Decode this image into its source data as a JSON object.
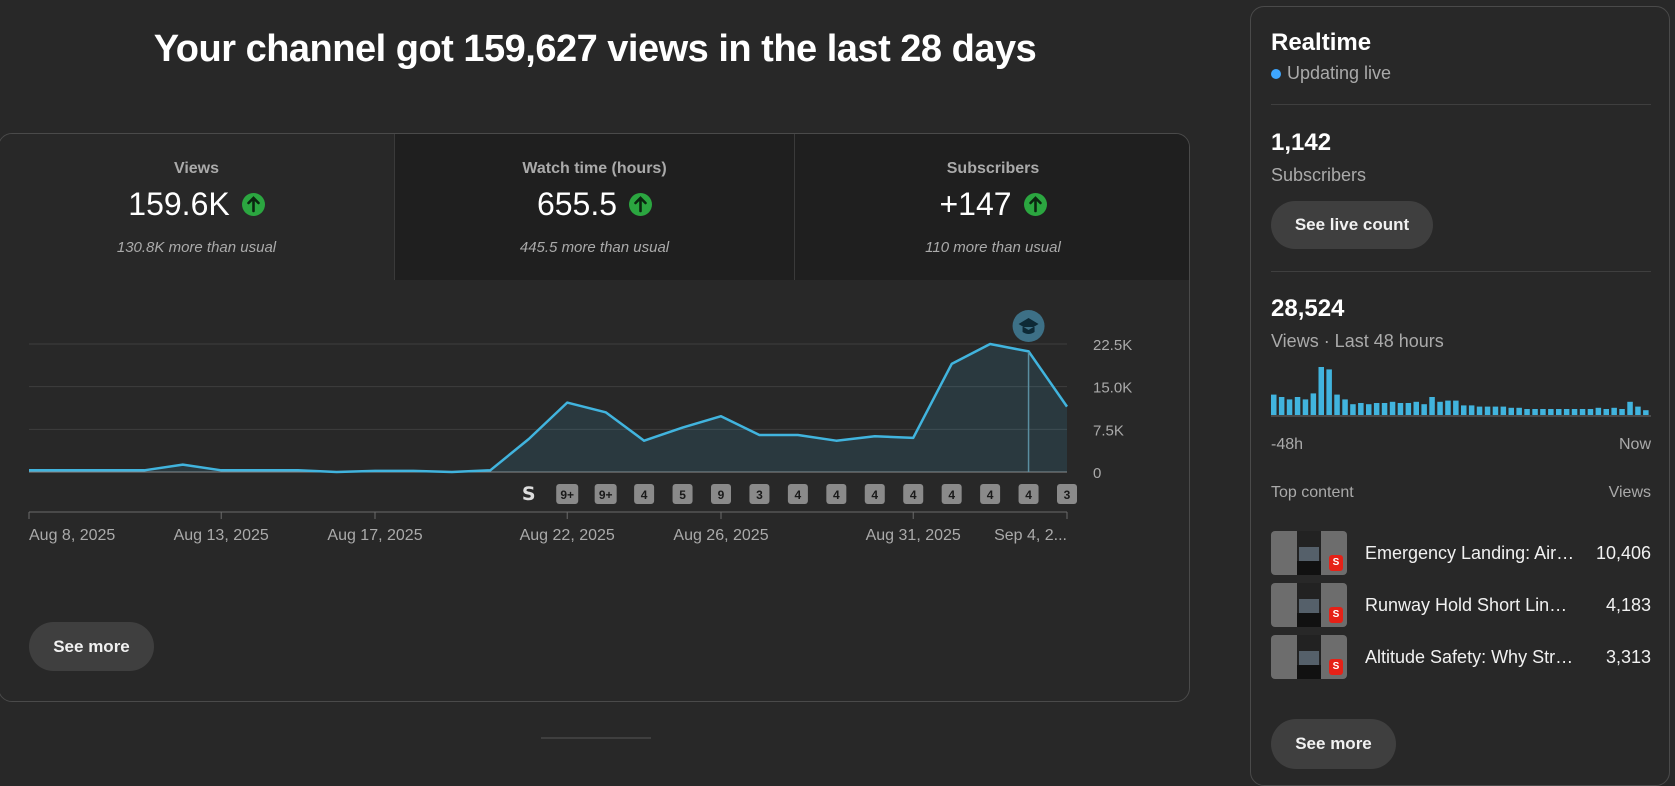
{
  "headline": "Your channel got 159,627 views in the last 28 days",
  "metrics": [
    {
      "label": "Views",
      "value": "159.6K",
      "sub": "130.8K more than usual",
      "selected": true
    },
    {
      "label": "Watch time (hours)",
      "value": "655.5",
      "sub": "445.5 more than usual",
      "selected": false
    },
    {
      "label": "Subscribers",
      "value": "+147",
      "sub": "110 more than usual",
      "selected": false
    }
  ],
  "chart_data": {
    "type": "area",
    "title": "Views",
    "ylim": [
      0,
      22500
    ],
    "y_ticks": [
      "22.5K",
      "15.0K",
      "7.5K",
      "0"
    ],
    "y_tick_values": [
      22500,
      15000,
      7500,
      0
    ],
    "x_labels": [
      "Aug 8, 2025",
      "Aug 13, 2025",
      "Aug 17, 2025",
      "Aug 22, 2025",
      "Aug 26, 2025",
      "Aug 31, 2025",
      "Sep 4, 2..."
    ],
    "x_label_index": [
      0,
      5,
      9,
      14,
      18,
      23,
      27
    ],
    "series": [
      {
        "name": "Views",
        "values": [
          300,
          300,
          300,
          300,
          1300,
          300,
          300,
          300,
          0,
          200,
          200,
          0,
          300,
          5800,
          12200,
          10500,
          5500,
          7800,
          9800,
          6500,
          6500,
          5500,
          6300,
          6000,
          19000,
          22500,
          21200,
          11500
        ]
      }
    ],
    "badges": [
      "shorts-icon",
      "9+",
      "9+",
      "4",
      "5",
      "9",
      "3",
      "4",
      "4",
      "4",
      "4",
      "4",
      "4",
      "4",
      "3"
    ],
    "badge_start_index": 13,
    "marker_index": 26,
    "annotation_icon": "graduation-cap-icon"
  },
  "main_see_more": "See more",
  "realtime": {
    "title": "Realtime",
    "status": "Updating live",
    "subscribers_value": "1,142",
    "subscribers_label": "Subscribers",
    "live_count_button": "See live count",
    "views_value": "28,524",
    "views_label": "Views · Last 48 hours",
    "axis_start": "-48h",
    "axis_end": "Now",
    "bars": [
      17,
      15,
      13,
      15,
      13,
      18,
      40,
      38,
      17,
      13,
      9,
      10,
      9,
      10,
      10,
      11,
      10,
      10,
      11,
      9,
      15,
      11,
      12,
      12,
      8,
      8,
      7,
      7,
      7,
      7,
      6,
      6,
      5,
      5,
      5,
      5,
      5,
      5,
      5,
      5,
      5,
      6,
      5,
      6,
      5,
      11,
      7,
      4
    ],
    "top_content_label": "Top content",
    "views_header": "Views",
    "top_content": [
      {
        "title": "Emergency Landing: Air…",
        "views": "10,406"
      },
      {
        "title": "Runway Hold Short Lines:…",
        "views": "4,183"
      },
      {
        "title": "Altitude Safety: Why Strai…",
        "views": "3,313"
      }
    ],
    "see_more": "See more"
  },
  "colors": {
    "accent": "#3ea6ff",
    "chart_line": "#41b4de",
    "positive": "#2ba640",
    "background": "#282828"
  }
}
